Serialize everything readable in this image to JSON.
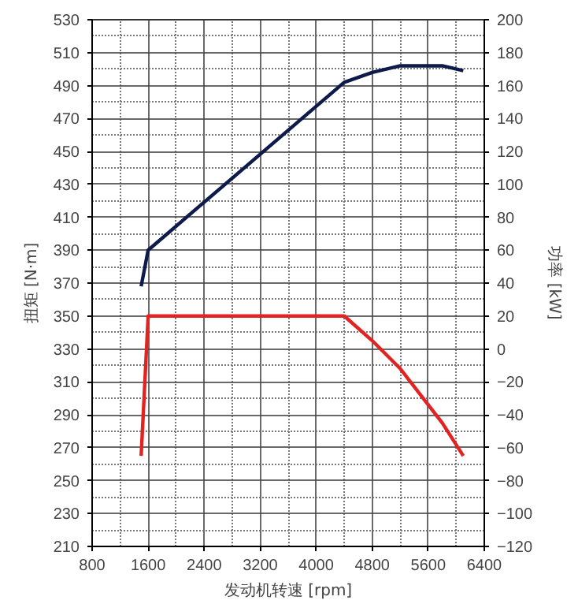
{
  "chart_data": {
    "type": "line",
    "xlabel": "发动机转速 [rpm]",
    "ylabel": "扭矩 [N·m]",
    "y2label": "功率 [kW]",
    "xlim": [
      800,
      6400
    ],
    "xticks": [
      800,
      1600,
      2400,
      3200,
      4000,
      4800,
      5600,
      6400
    ],
    "ylim": [
      210,
      530
    ],
    "yticks": [
      210,
      230,
      250,
      270,
      290,
      310,
      330,
      350,
      370,
      390,
      410,
      430,
      450,
      470,
      490,
      510,
      530
    ],
    "y2lim": [
      -120,
      200
    ],
    "y2ticks": [
      -120,
      -100,
      -80,
      -60,
      -40,
      -20,
      0,
      20,
      40,
      60,
      80,
      100,
      120,
      140,
      160,
      180,
      200
    ],
    "grid": true,
    "line_style": "solid",
    "marker": "none",
    "series": [
      {
        "color": "#e32222",
        "x": [
          1500,
          1600,
          4400,
          4800,
          5200,
          5800,
          6100
        ],
        "values": [
          265,
          350,
          350,
          335,
          318,
          285,
          265
        ]
      },
      {
        "color": "#0d1a4a",
        "axis": "y2",
        "x": [
          1500,
          1600,
          4400,
          4800,
          5200,
          5800,
          6100
        ],
        "values": [
          38,
          60,
          162,
          168,
          172,
          172,
          169
        ]
      }
    ]
  }
}
